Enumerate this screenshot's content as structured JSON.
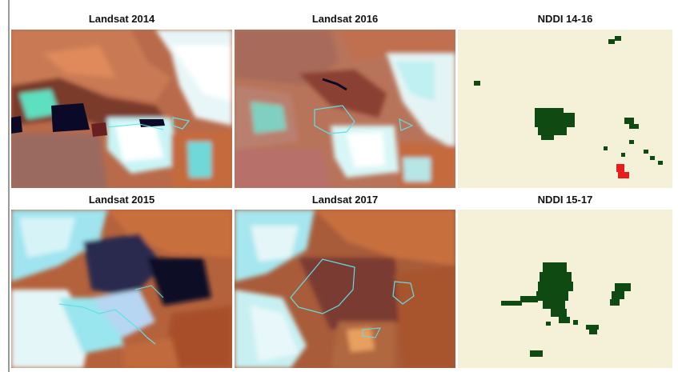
{
  "figure": {
    "panels": [
      {
        "id": "l2014",
        "title": "Landsat 2014",
        "kind": "satellite"
      },
      {
        "id": "l2016",
        "title": "Landsat 2016",
        "kind": "satellite"
      },
      {
        "id": "nddi1416",
        "title": "NDDI 14-16",
        "kind": "change-map"
      },
      {
        "id": "l2015",
        "title": "Landsat 2015",
        "kind": "satellite"
      },
      {
        "id": "l2017",
        "title": "Landsat 2017",
        "kind": "satellite"
      },
      {
        "id": "nddi1517",
        "title": "NDDI 15-17",
        "kind": "change-map"
      }
    ],
    "colors": {
      "change_map_bg": "#f4f1d8",
      "change_dark_green": "#0f4a12",
      "change_red": "#e81e1e",
      "boundary_cyan": "#5fe0e6",
      "soil_orange": "#c86a3c",
      "vegetation_cyan": "#7fe8e8",
      "dark_water": "#101030"
    }
  }
}
